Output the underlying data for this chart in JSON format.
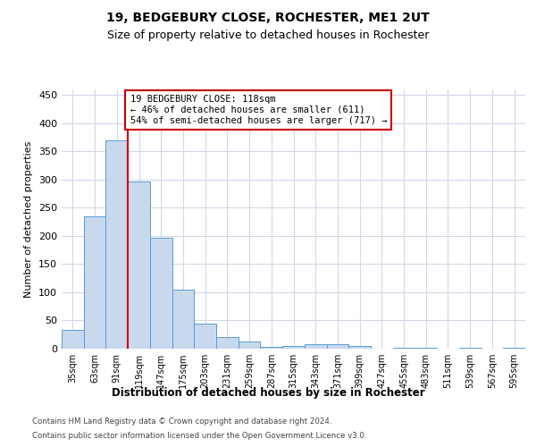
{
  "title1": "19, BEDGEBURY CLOSE, ROCHESTER, ME1 2UT",
  "title2": "Size of property relative to detached houses in Rochester",
  "xlabel": "Distribution of detached houses by size in Rochester",
  "ylabel": "Number of detached properties",
  "bin_labels": [
    "35sqm",
    "63sqm",
    "91sqm",
    "119sqm",
    "147sqm",
    "175sqm",
    "203sqm",
    "231sqm",
    "259sqm",
    "287sqm",
    "315sqm",
    "343sqm",
    "371sqm",
    "399sqm",
    "427sqm",
    "455sqm",
    "483sqm",
    "511sqm",
    "539sqm",
    "567sqm",
    "595sqm"
  ],
  "bar_values": [
    33,
    235,
    370,
    297,
    197,
    104,
    45,
    20,
    12,
    3,
    5,
    8,
    8,
    4,
    0,
    2,
    1,
    0,
    1,
    0,
    1
  ],
  "bar_color": "#c8d9ee",
  "bar_edge_color": "#5b9bd5",
  "property_line_x": 3,
  "property_line_color": "#cc0000",
  "annotation_text": "19 BEDGEBURY CLOSE: 118sqm\n← 46% of detached houses are smaller (611)\n54% of semi-detached houses are larger (717) →",
  "annotation_box_color": "#ffffff",
  "annotation_box_edge": "#cc0000",
  "ylim": [
    0,
    460
  ],
  "yticks": [
    0,
    50,
    100,
    150,
    200,
    250,
    300,
    350,
    400,
    450
  ],
  "footer1": "Contains HM Land Registry data © Crown copyright and database right 2024.",
  "footer2": "Contains public sector information licensed under the Open Government Licence v3.0.",
  "bg_color": "#ffffff",
  "grid_color": "#d0d8e8"
}
